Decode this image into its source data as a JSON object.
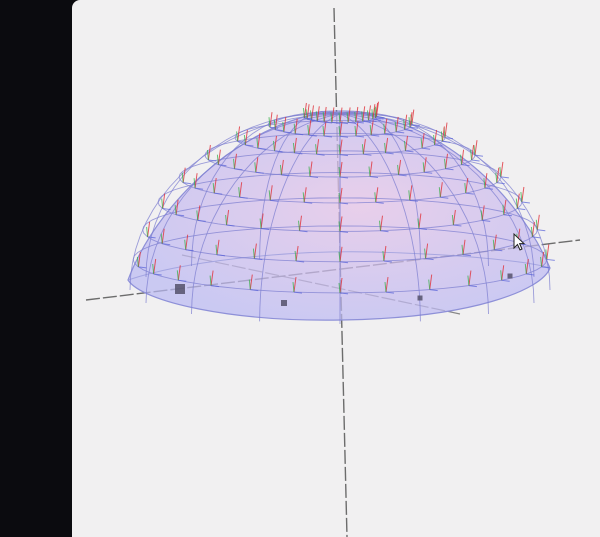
{
  "scene": {
    "object": "hemisphere-surface",
    "surface_color": "#b9b8f3",
    "surface_highlight_color": "#e6c4e8",
    "mesh_line_color": "#7d7fd0",
    "axis_color": "#6c6c6c",
    "tangent_x_color": "#e0323a",
    "tangent_y_color": "#2fae3f",
    "normal_color": "#5560d8",
    "background_color": "#f1f0f1",
    "control_point_color": "#55516b"
  },
  "cursor": {
    "icon": "arrow-cursor-icon"
  }
}
